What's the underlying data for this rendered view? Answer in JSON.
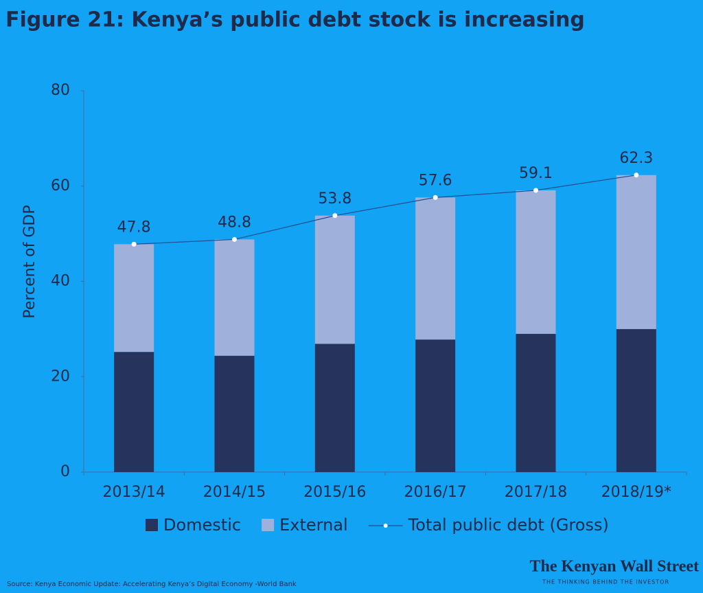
{
  "chart_data": {
    "type": "stacked-bar-line",
    "title": "Figure 21: Kenya’s public debt stock is increasing",
    "y_label": "Percent of GDP",
    "categories": [
      "2013/14",
      "2014/15",
      "2015/16",
      "2016/17",
      "2017/18",
      "2018/19*"
    ],
    "series": [
      {
        "name": "Domestic",
        "color": "#26335c",
        "kind": "bar",
        "values": [
          25.2,
          24.4,
          26.9,
          27.8,
          29.0,
          30.0
        ]
      },
      {
        "name": "External",
        "color": "#9fb0db",
        "kind": "bar",
        "values": [
          22.6,
          24.4,
          26.9,
          29.8,
          30.1,
          32.3
        ]
      },
      {
        "name": "Total public debt (Gross)",
        "color": "#1f4f8f",
        "kind": "line",
        "values": [
          47.8,
          48.8,
          53.8,
          57.6,
          59.1,
          62.3
        ]
      }
    ],
    "ylim": [
      0,
      80
    ],
    "yticks": [
      0,
      20,
      40,
      60,
      80
    ],
    "source": "Source: Kenya Economic Update: Accelerating Kenya’s Digital Economy -World Bank",
    "logo": "The Kenyan Wall Street",
    "tagline": "THE THINKING BEHIND THE INVESTOR"
  }
}
